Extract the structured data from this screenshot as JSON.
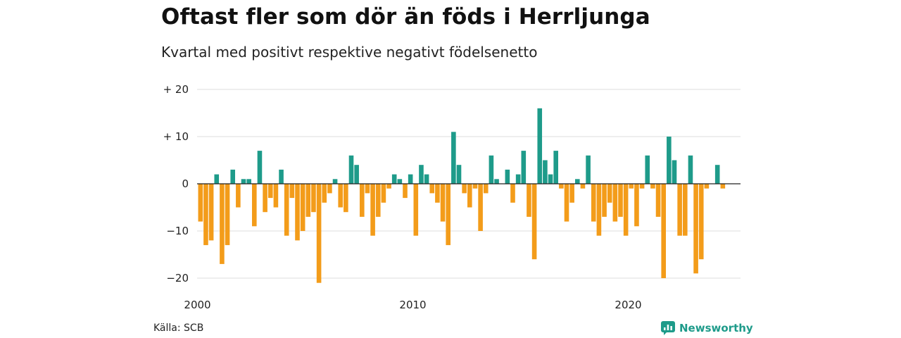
{
  "title": "Oftast fler som dör än föds i Herrljunga",
  "subtitle": "Kvartal med positivt respektive negativt födelsenetto",
  "source": "Källa: SCB",
  "brand": {
    "name": "Newsworthy",
    "icon": "newsworthy-logo-icon",
    "color": "#1e9b8a"
  },
  "colors": {
    "positive": "#1e9b8a",
    "negative": "#f39c1a",
    "grid": "#dddddd",
    "zero": "#222222"
  },
  "chart_data": {
    "type": "bar",
    "title": "Oftast fler som dör än föds i Herrljunga",
    "subtitle": "Kvartal med positivt respektive negativt födelsenetto",
    "xlabel": "",
    "ylabel": "",
    "ylim": [
      -20,
      20
    ],
    "y_ticks": [
      {
        "value": 20,
        "label": "+ 20"
      },
      {
        "value": 10,
        "label": "+ 10"
      },
      {
        "value": 0,
        "label": "0"
      },
      {
        "value": -10,
        "label": "−10"
      },
      {
        "value": -20,
        "label": "−20"
      }
    ],
    "x_ticks": [
      {
        "year": 2000,
        "label": "2000"
      },
      {
        "year": 2010,
        "label": "2010"
      },
      {
        "year": 2020,
        "label": "2020"
      }
    ],
    "start_year": 2000,
    "start_quarter": 1,
    "grid": true,
    "values": [
      -8,
      -13,
      -12,
      2,
      -17,
      -13,
      3,
      -5,
      1,
      1,
      -9,
      7,
      -6,
      -3,
      -5,
      3,
      -11,
      -3,
      -12,
      -10,
      -7,
      -6,
      -21,
      -4,
      -2,
      1,
      -5,
      -6,
      6,
      4,
      -7,
      -2,
      -11,
      -7,
      -4,
      -1,
      2,
      1,
      -3,
      2,
      -11,
      4,
      2,
      -2,
      -4,
      -8,
      -13,
      11,
      4,
      -2,
      -5,
      -1,
      -10,
      -2,
      6,
      1,
      0,
      3,
      -4,
      2,
      7,
      -7,
      -16,
      16,
      5,
      2,
      7,
      -1,
      -8,
      -4,
      1,
      -1,
      6,
      -8,
      -11,
      -7,
      -4,
      -8,
      -7,
      -11,
      -1,
      -9,
      -1,
      6,
      -1,
      -7,
      -20,
      10,
      5,
      -11,
      -11,
      6,
      -19,
      -16,
      -1,
      0,
      4,
      -1
    ]
  }
}
